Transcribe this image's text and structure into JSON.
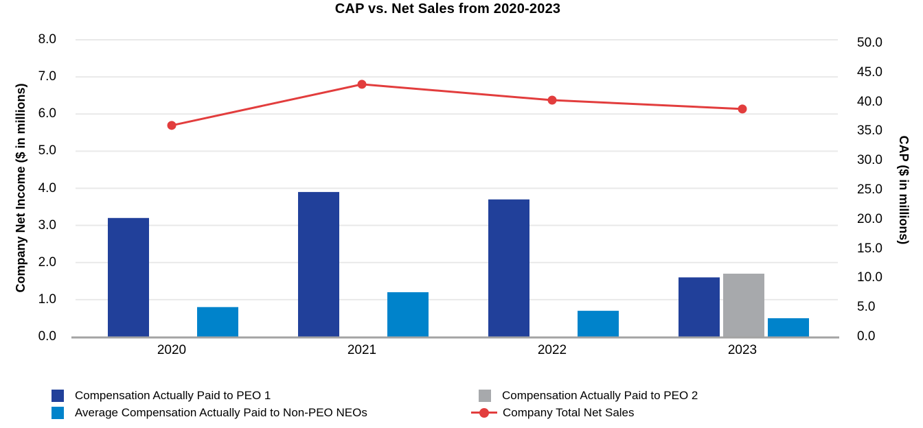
{
  "title": "CAP vs. Net Sales from 2020-2023",
  "chart_data": {
    "type": "bar+line",
    "title": "CAP vs. Net Sales from 2020-2023",
    "categories": [
      "2020",
      "2021",
      "2022",
      "2023"
    ],
    "bar_series": [
      {
        "name": "Compensation Actually Paid to PEO 1",
        "axis": "left",
        "color": "#21409A",
        "values": [
          3.2,
          3.9,
          3.7,
          1.6
        ]
      },
      {
        "name": "Compensation Actually Paid to PEO 2",
        "axis": "left",
        "color": "#A7A9AC",
        "values": [
          null,
          null,
          null,
          1.7
        ]
      },
      {
        "name": "Average Compensation Actually Paid to Non-PEO NEOs",
        "axis": "left",
        "color": "#0083CB",
        "values": [
          0.8,
          1.2,
          0.7,
          0.5
        ]
      }
    ],
    "line_series": [
      {
        "name": "Company Total Net Sales",
        "axis": "right",
        "color": "#E23D3D",
        "values": [
          36.0,
          43.0,
          40.3,
          38.8
        ]
      }
    ],
    "axes": {
      "left": {
        "title": "Company Net Income ($ in millions)",
        "min": 0,
        "max": 8,
        "step": 1,
        "tick_labels": [
          "0.0",
          "1.0",
          "2.0",
          "3.0",
          "4.0",
          "5.0",
          "6.0",
          "7.0",
          "8.0"
        ]
      },
      "right": {
        "title": "CAP ($ in millions)",
        "min": 0,
        "max": 50,
        "step": 5,
        "tick_labels": [
          "0.0",
          "5.0",
          "10.0",
          "15.0",
          "20.0",
          "25.0",
          "30.0",
          "35.0",
          "40.0",
          "45.0",
          "50.0"
        ]
      }
    },
    "grid": "horizontal",
    "legend_position": "bottom",
    "style": {
      "grid_color": "#E9E9E9",
      "axis_line_color": "#A3A3A3",
      "text_color": "#000000",
      "background_color": "#FFFFFF"
    }
  }
}
